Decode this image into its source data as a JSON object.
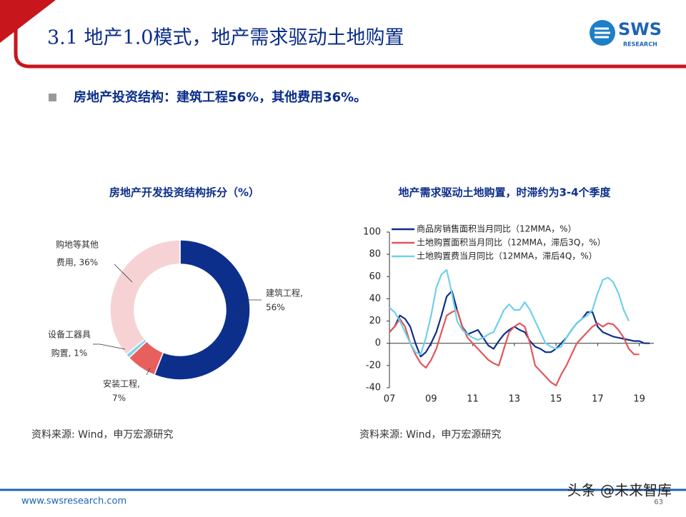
{
  "header": {
    "title": "3.1 地产1.0模式，地产需求驱动土地购置",
    "logo": "SWS",
    "logo_sub": "RESEARCH"
  },
  "bullet": "房地产投资结构：建筑工程56%，其他费用36%。",
  "chart_data": [
    {
      "type": "donut",
      "title": "房地产开发投资结构拆分（%）",
      "values": [
        56,
        7,
        1,
        36
      ],
      "value_labels": [
        [
          "建筑工程,",
          "56%"
        ],
        [
          "安装工程,",
          "7%"
        ],
        [
          "设备工器具",
          "购置, 1%"
        ],
        [
          "购地等其他",
          "费用, 36%"
        ]
      ],
      "colors": [
        "#0d2f8c",
        "#e8605e",
        "#7fd3ec",
        "#f6d2d5"
      ],
      "source": "资料来源: Wind，申万宏源研究"
    },
    {
      "type": "line",
      "title": "地产需求驱动土地购置，时滞约为3-4个季度",
      "x": [
        7,
        7.25,
        7.5,
        7.75,
        8,
        8.25,
        8.5,
        8.75,
        9,
        9.25,
        9.5,
        9.75,
        10,
        10.25,
        10.5,
        10.75,
        11,
        11.25,
        11.5,
        11.75,
        12,
        12.25,
        12.5,
        12.75,
        13,
        13.25,
        13.5,
        13.75,
        14,
        14.25,
        14.5,
        14.75,
        15,
        15.25,
        15.5,
        15.75,
        16,
        16.25,
        16.5,
        16.75,
        17,
        17.25,
        17.5,
        17.75,
        18,
        18.25,
        18.5,
        18.75,
        19,
        19.25,
        19.5
      ],
      "series": [
        {
          "name": "商品房销售面积当月同比（12MMA，%）",
          "color": "#0d2f8c",
          "values": [
            10,
            15,
            25,
            22,
            15,
            0,
            -12,
            -8,
            0,
            10,
            25,
            42,
            47,
            30,
            15,
            8,
            10,
            12,
            5,
            -2,
            -5,
            2,
            8,
            12,
            15,
            12,
            10,
            2,
            -3,
            -5,
            -8,
            -8,
            -5,
            0,
            5,
            12,
            18,
            22,
            28,
            28,
            15,
            10,
            8,
            6,
            5,
            4,
            3,
            2,
            2,
            0,
            0
          ]
        },
        {
          "name": "土地购置面积当月同比（12MMA，滞后3Q，%）",
          "color": "#e0575a",
          "values": [
            10,
            15,
            22,
            15,
            0,
            -10,
            -18,
            -22,
            -15,
            -5,
            10,
            25,
            28,
            30,
            15,
            5,
            0,
            -5,
            -10,
            -15,
            -18,
            -20,
            -5,
            10,
            15,
            18,
            15,
            0,
            -20,
            -25,
            -30,
            -35,
            -38,
            -28,
            -20,
            -10,
            0,
            5,
            10,
            15,
            18,
            15,
            18,
            17,
            12,
            5,
            -5,
            -10,
            -10,
            null,
            null
          ]
        },
        {
          "name": "土地购置费当月同比（12MMA，滞后4Q，%）",
          "color": "#6fd0ec",
          "values": [
            32,
            28,
            20,
            10,
            0,
            -8,
            -10,
            5,
            25,
            50,
            62,
            66,
            45,
            20,
            12,
            8,
            5,
            3,
            5,
            8,
            10,
            20,
            30,
            35,
            30,
            30,
            37,
            30,
            20,
            10,
            0,
            -3,
            -5,
            -3,
            5,
            12,
            18,
            22,
            25,
            30,
            45,
            57,
            59,
            55,
            45,
            30,
            20,
            null,
            null,
            null,
            null
          ]
        }
      ],
      "xlim": [
        7,
        19.7
      ],
      "xticks": [
        {
          "value": 7,
          "label": "07"
        },
        {
          "value": 9,
          "label": "09"
        },
        {
          "value": 11,
          "label": "11"
        },
        {
          "value": 13,
          "label": "13"
        },
        {
          "value": 15,
          "label": "15"
        },
        {
          "value": 17,
          "label": "17"
        },
        {
          "value": 19,
          "label": "19"
        }
      ],
      "ylim": [
        -40,
        100
      ],
      "yticks": [
        -40,
        -20,
        0,
        20,
        40,
        60,
        80,
        100
      ],
      "source": "资料来源: Wind，申万宏源研究"
    }
  ],
  "footer": {
    "url": "www.swsresearch.com",
    "page": "63",
    "watermark": "头条 @未来智库"
  }
}
